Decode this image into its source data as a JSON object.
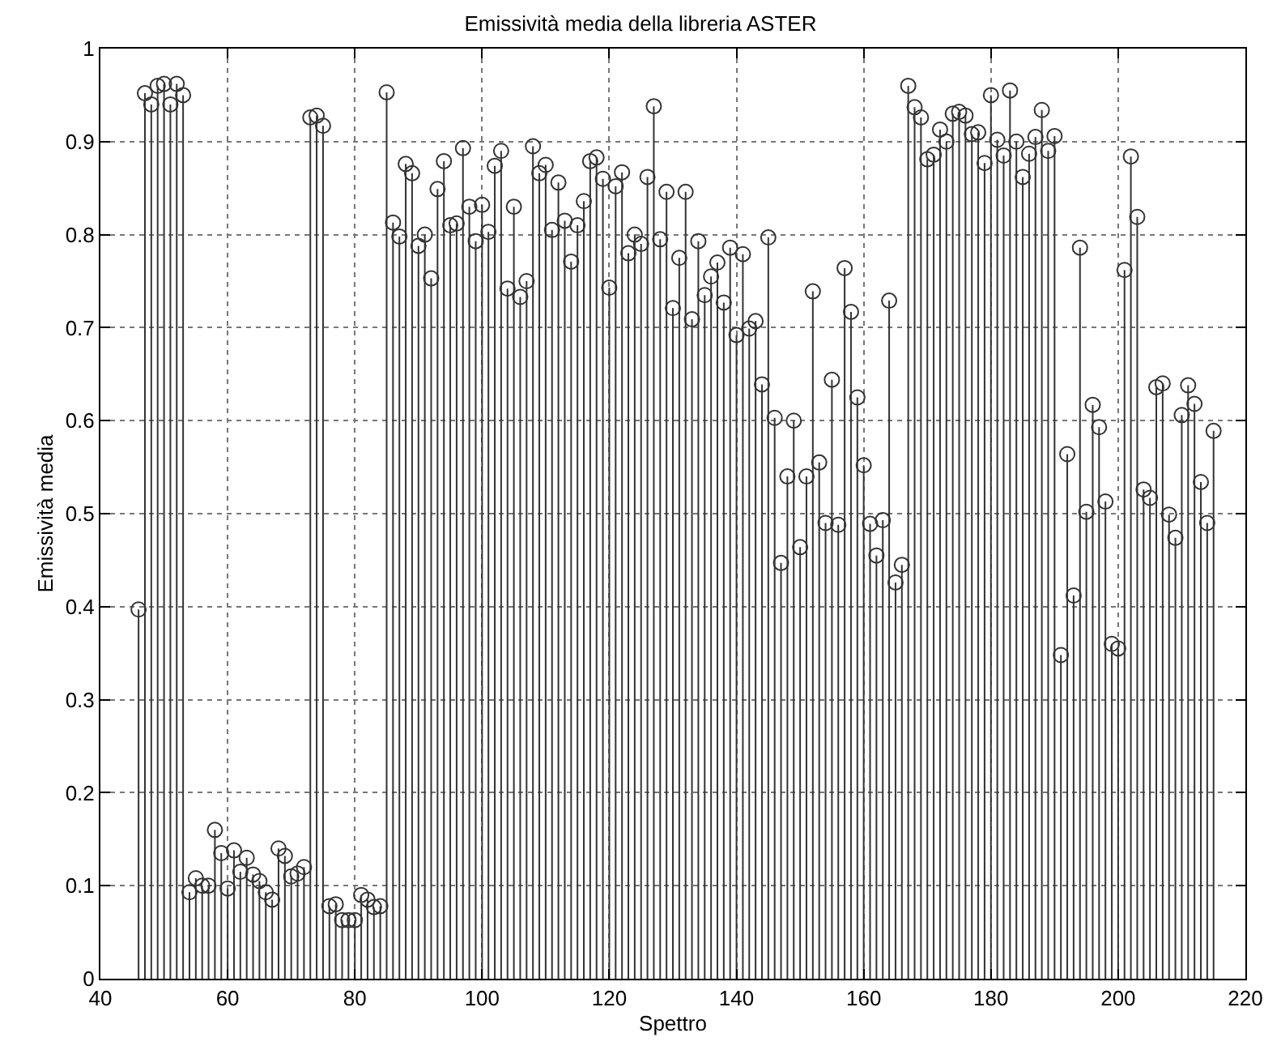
{
  "chart_data": {
    "type": "lollipop",
    "title": "Emissività media della libreria ASTER",
    "xlabel": "Spettro",
    "ylabel": "Emissività media",
    "x": [
      46,
      47,
      48,
      49,
      50,
      51,
      52,
      53,
      54,
      55,
      56,
      57,
      58,
      59,
      60,
      61,
      62,
      63,
      64,
      65,
      66,
      67,
      68,
      69,
      70,
      71,
      72,
      73,
      74,
      75,
      76,
      77,
      78,
      79,
      80,
      81,
      82,
      83,
      84,
      85,
      86,
      87,
      88,
      89,
      90,
      91,
      92,
      93,
      94,
      95,
      96,
      97,
      98,
      99,
      100,
      101,
      102,
      103,
      104,
      105,
      106,
      107,
      108,
      109,
      110,
      111,
      112,
      113,
      114,
      115,
      116,
      117,
      118,
      119,
      120,
      121,
      122,
      123,
      124,
      125,
      126,
      127,
      128,
      129,
      130,
      131,
      132,
      133,
      134,
      135,
      136,
      137,
      138,
      139,
      140,
      141,
      142,
      143,
      144,
      145,
      146,
      147,
      148,
      149,
      150,
      151,
      152,
      153,
      154,
      155,
      156,
      157,
      158,
      159,
      160,
      161,
      162,
      163,
      164,
      165,
      166,
      167,
      168,
      169,
      170,
      171,
      172,
      173,
      174,
      175,
      176,
      177,
      178,
      179,
      180,
      181,
      182,
      183,
      184,
      185,
      186,
      187,
      188,
      189,
      190,
      191,
      192,
      193,
      194,
      195,
      196,
      197,
      198,
      199,
      200,
      201,
      202,
      203,
      204,
      205,
      206,
      207,
      208,
      209,
      210,
      211,
      212,
      213,
      214,
      215
    ],
    "values": [
      0.397,
      0.952,
      0.94,
      0.96,
      0.962,
      0.94,
      0.962,
      0.95,
      0.093,
      0.108,
      0.1,
      0.1,
      0.16,
      0.135,
      0.097,
      0.138,
      0.115,
      0.13,
      0.112,
      0.105,
      0.093,
      0.085,
      0.14,
      0.132,
      0.11,
      0.113,
      0.12,
      0.926,
      0.928,
      0.917,
      0.078,
      0.08,
      0.063,
      0.063,
      0.063,
      0.09,
      0.085,
      0.077,
      0.078,
      0.953,
      0.813,
      0.798,
      0.876,
      0.866,
      0.788,
      0.8,
      0.753,
      0.849,
      0.879,
      0.81,
      0.812,
      0.893,
      0.83,
      0.793,
      0.832,
      0.803,
      0.874,
      0.89,
      0.742,
      0.83,
      0.733,
      0.75,
      0.895,
      0.866,
      0.875,
      0.805,
      0.856,
      0.815,
      0.771,
      0.81,
      0.836,
      0.879,
      0.883,
      0.86,
      0.743,
      0.852,
      0.867,
      0.78,
      0.8,
      0.79,
      0.862,
      0.938,
      0.795,
      0.846,
      0.721,
      0.775,
      0.846,
      0.709,
      0.793,
      0.735,
      0.755,
      0.77,
      0.727,
      0.786,
      0.692,
      0.779,
      0.699,
      0.707,
      0.639,
      0.797,
      0.603,
      0.447,
      0.54,
      0.6,
      0.464,
      0.54,
      0.739,
      0.555,
      0.49,
      0.644,
      0.488,
      0.764,
      0.717,
      0.625,
      0.552,
      0.489,
      0.455,
      0.493,
      0.729,
      0.426,
      0.445,
      0.96,
      0.937,
      0.926,
      0.881,
      0.886,
      0.913,
      0.9,
      0.93,
      0.932,
      0.928,
      0.908,
      0.91,
      0.877,
      0.95,
      0.902,
      0.885,
      0.955,
      0.9,
      0.862,
      0.887,
      0.905,
      0.934,
      0.89,
      0.906,
      0.348,
      0.564,
      0.412,
      0.786,
      0.502,
      0.617,
      0.593,
      0.513,
      0.36,
      0.355,
      0.762,
      0.884,
      0.819,
      0.526,
      0.517,
      0.636,
      0.64,
      0.499,
      0.474,
      0.606,
      0.638,
      0.618,
      0.534,
      0.49,
      0.589
    ],
    "color": "#333333",
    "marker": "circle",
    "grid": true,
    "line_style": "dotted",
    "xlim": [
      40,
      220
    ],
    "xticks": [
      40,
      60,
      80,
      100,
      120,
      140,
      160,
      180,
      200,
      220
    ],
    "ylim": [
      0,
      1
    ],
    "yticks": [
      0,
      0.1,
      0.2,
      0.3,
      0.4,
      0.5,
      0.6,
      0.7,
      0.8,
      0.9,
      1
    ]
  }
}
